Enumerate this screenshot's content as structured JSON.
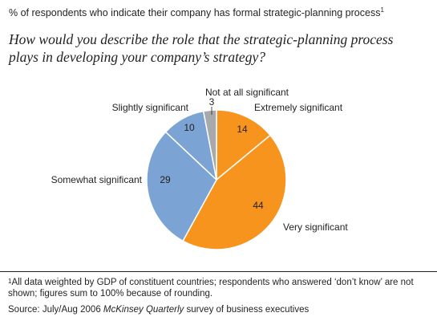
{
  "header": {
    "subtitle": "% of respondents who indicate their company has formal strategic-planning process",
    "subtitle_note": "1",
    "question": "How would you describe the role that the strategic-planning process plays in developing your company’s strategy?"
  },
  "chart_data": {
    "type": "pie",
    "unit": "%",
    "start_angle_deg": 0,
    "direction": "clockwise",
    "slices": [
      {
        "label": "Extremely significant",
        "value": 14,
        "color": "#f7941d"
      },
      {
        "label": "Very significant",
        "value": 44,
        "color": "#f7941d"
      },
      {
        "label": "Somewhat significant",
        "value": 29,
        "color": "#7ba3d3"
      },
      {
        "label": "Slightly significant",
        "value": 10,
        "color": "#7ba3d3"
      },
      {
        "label": "Not at all significant",
        "value": 3,
        "color": "#a7a9ac"
      }
    ]
  },
  "footer": {
    "footnote_mark": "1",
    "footnote": "All data weighted by GDP of constituent countries; respondents who answered ‘don’t know’ are not shown; figures sum to 100% because of rounding.",
    "source_prefix": "Source: July/Aug 2006 ",
    "source_publication": "McKinsey Quarterly",
    "source_suffix": " survey of business executives"
  }
}
